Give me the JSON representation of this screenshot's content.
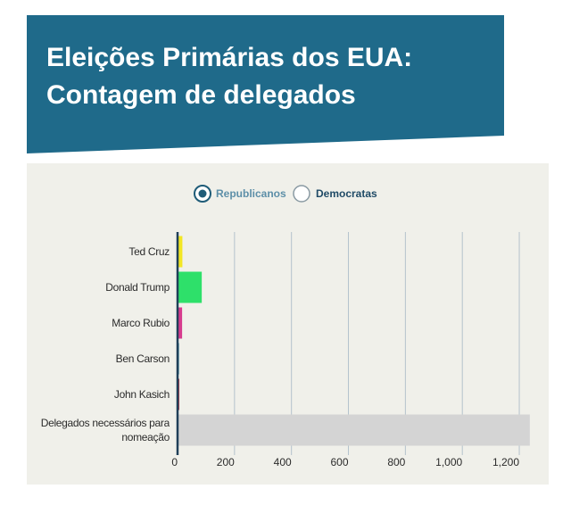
{
  "header": {
    "title_lines": [
      "Eleições Primárias dos EUA:",
      "Contagem de delegados"
    ]
  },
  "toggle": {
    "options": [
      "Republicanos",
      "Democratas"
    ],
    "selected": "Republicanos"
  },
  "chart_data": {
    "type": "bar",
    "orientation": "horizontal",
    "categories": [
      "Ted Cruz",
      "Donald Trump",
      "Marco Rubio",
      "Ben Carson",
      "John Kasich",
      "Delegados necessários para nomeação"
    ],
    "values": [
      17,
      85,
      16,
      5,
      6,
      1237
    ],
    "colors": [
      "#f2e624",
      "#2ee06a",
      "#d63b8e",
      "#1b7a99",
      "#a3263a",
      "#d4d4d4"
    ],
    "xlim": [
      0,
      1250
    ],
    "xticks": [
      0,
      200,
      400,
      600,
      800,
      {
        "value": 1000,
        "label": "1,000"
      },
      {
        "value": 1200,
        "label": "1,200"
      }
    ],
    "grid": true
  }
}
